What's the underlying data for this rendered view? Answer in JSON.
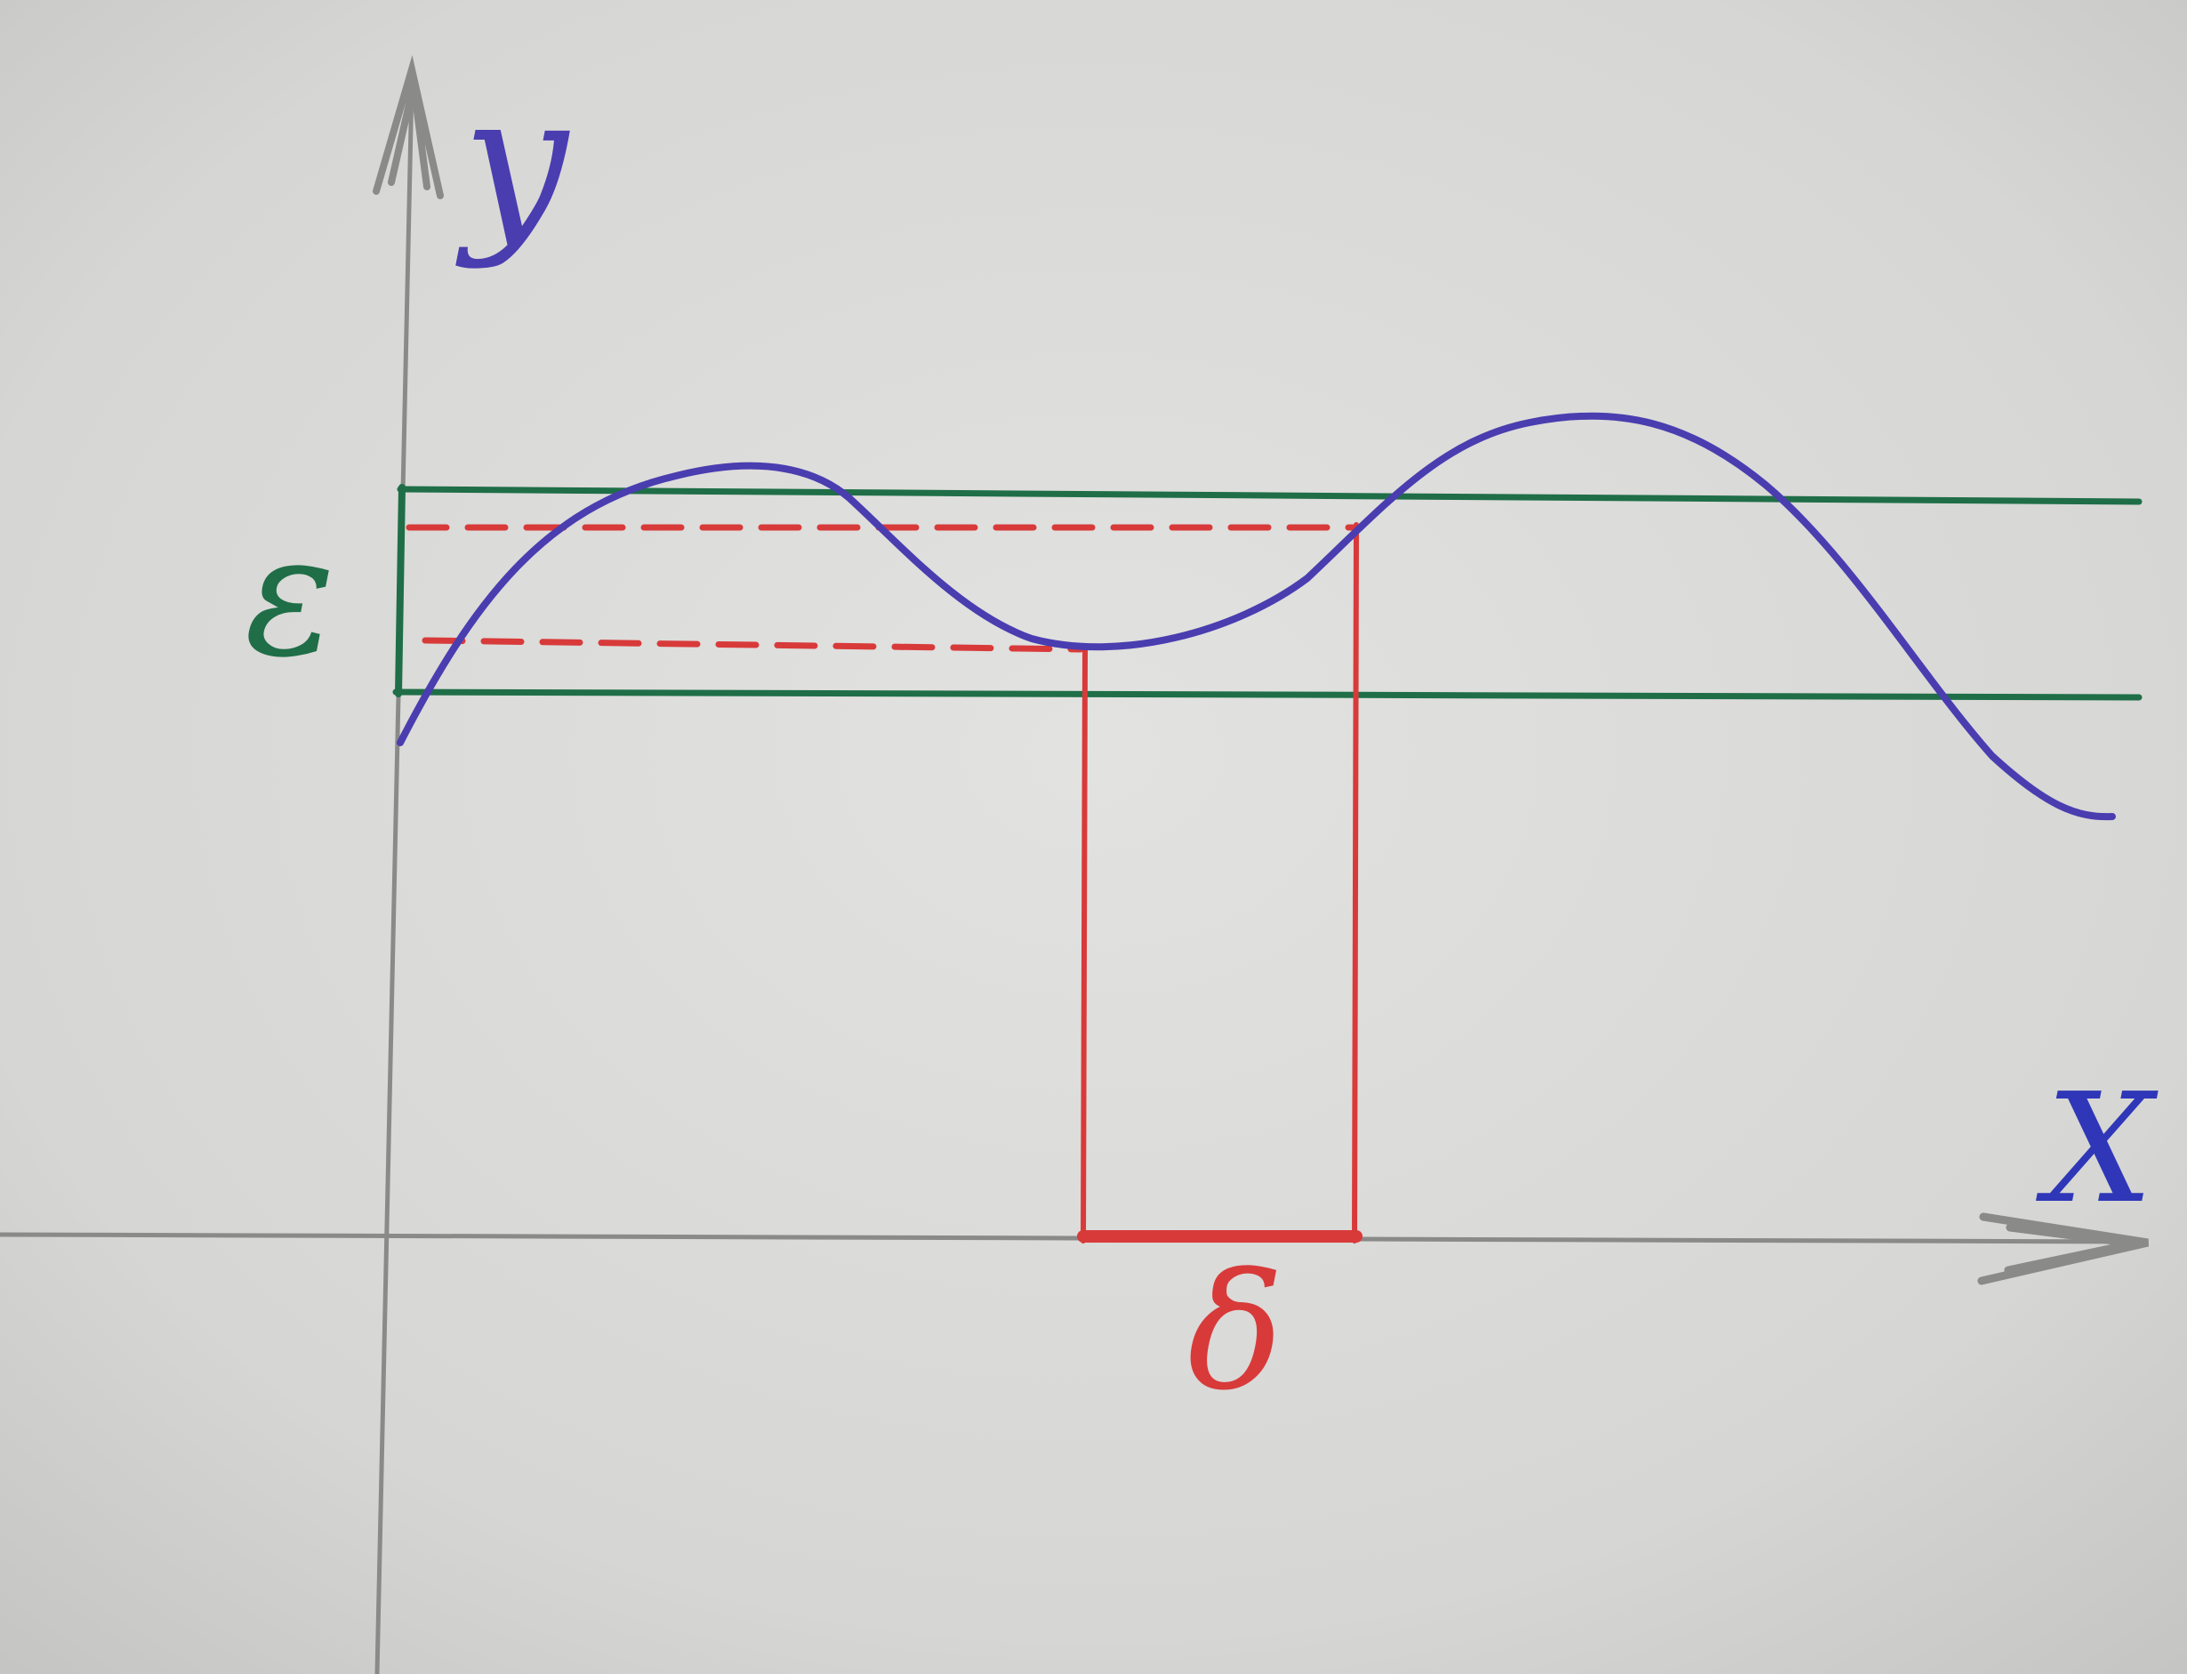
{
  "labels": {
    "y_axis": "y",
    "x_axis": "X",
    "epsilon": "ε",
    "delta": "δ"
  },
  "colors": {
    "paper": "#d8d8d6",
    "axis": "#8a8a88",
    "curve": "#4a3db0",
    "band": "#1f6e48",
    "interval": "#d83a3a"
  }
}
